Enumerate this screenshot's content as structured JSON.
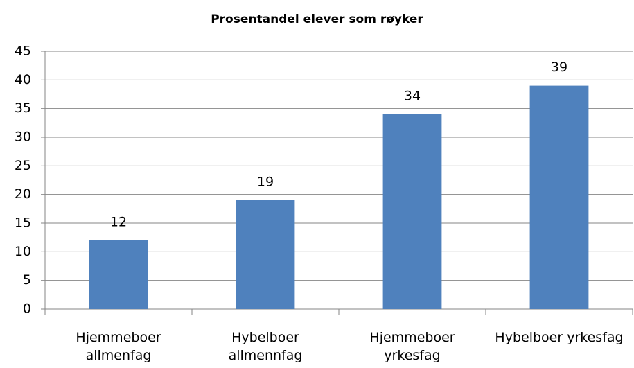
{
  "chart_data": {
    "type": "bar",
    "title": "Prosentandel elever som røyker",
    "categories": [
      "Hjemmeboer\nallmenfag",
      "Hybelboer\nallmennfag",
      "Hjemmeboer\nyrkesfag",
      "Hybelboer yrkesfag"
    ],
    "values": [
      12,
      19,
      34,
      39
    ],
    "color": "#4f81bd",
    "ylim": [
      0,
      45
    ],
    "yticks": [
      0,
      5,
      10,
      15,
      20,
      25,
      30,
      35,
      40,
      45
    ],
    "grid": true
  }
}
